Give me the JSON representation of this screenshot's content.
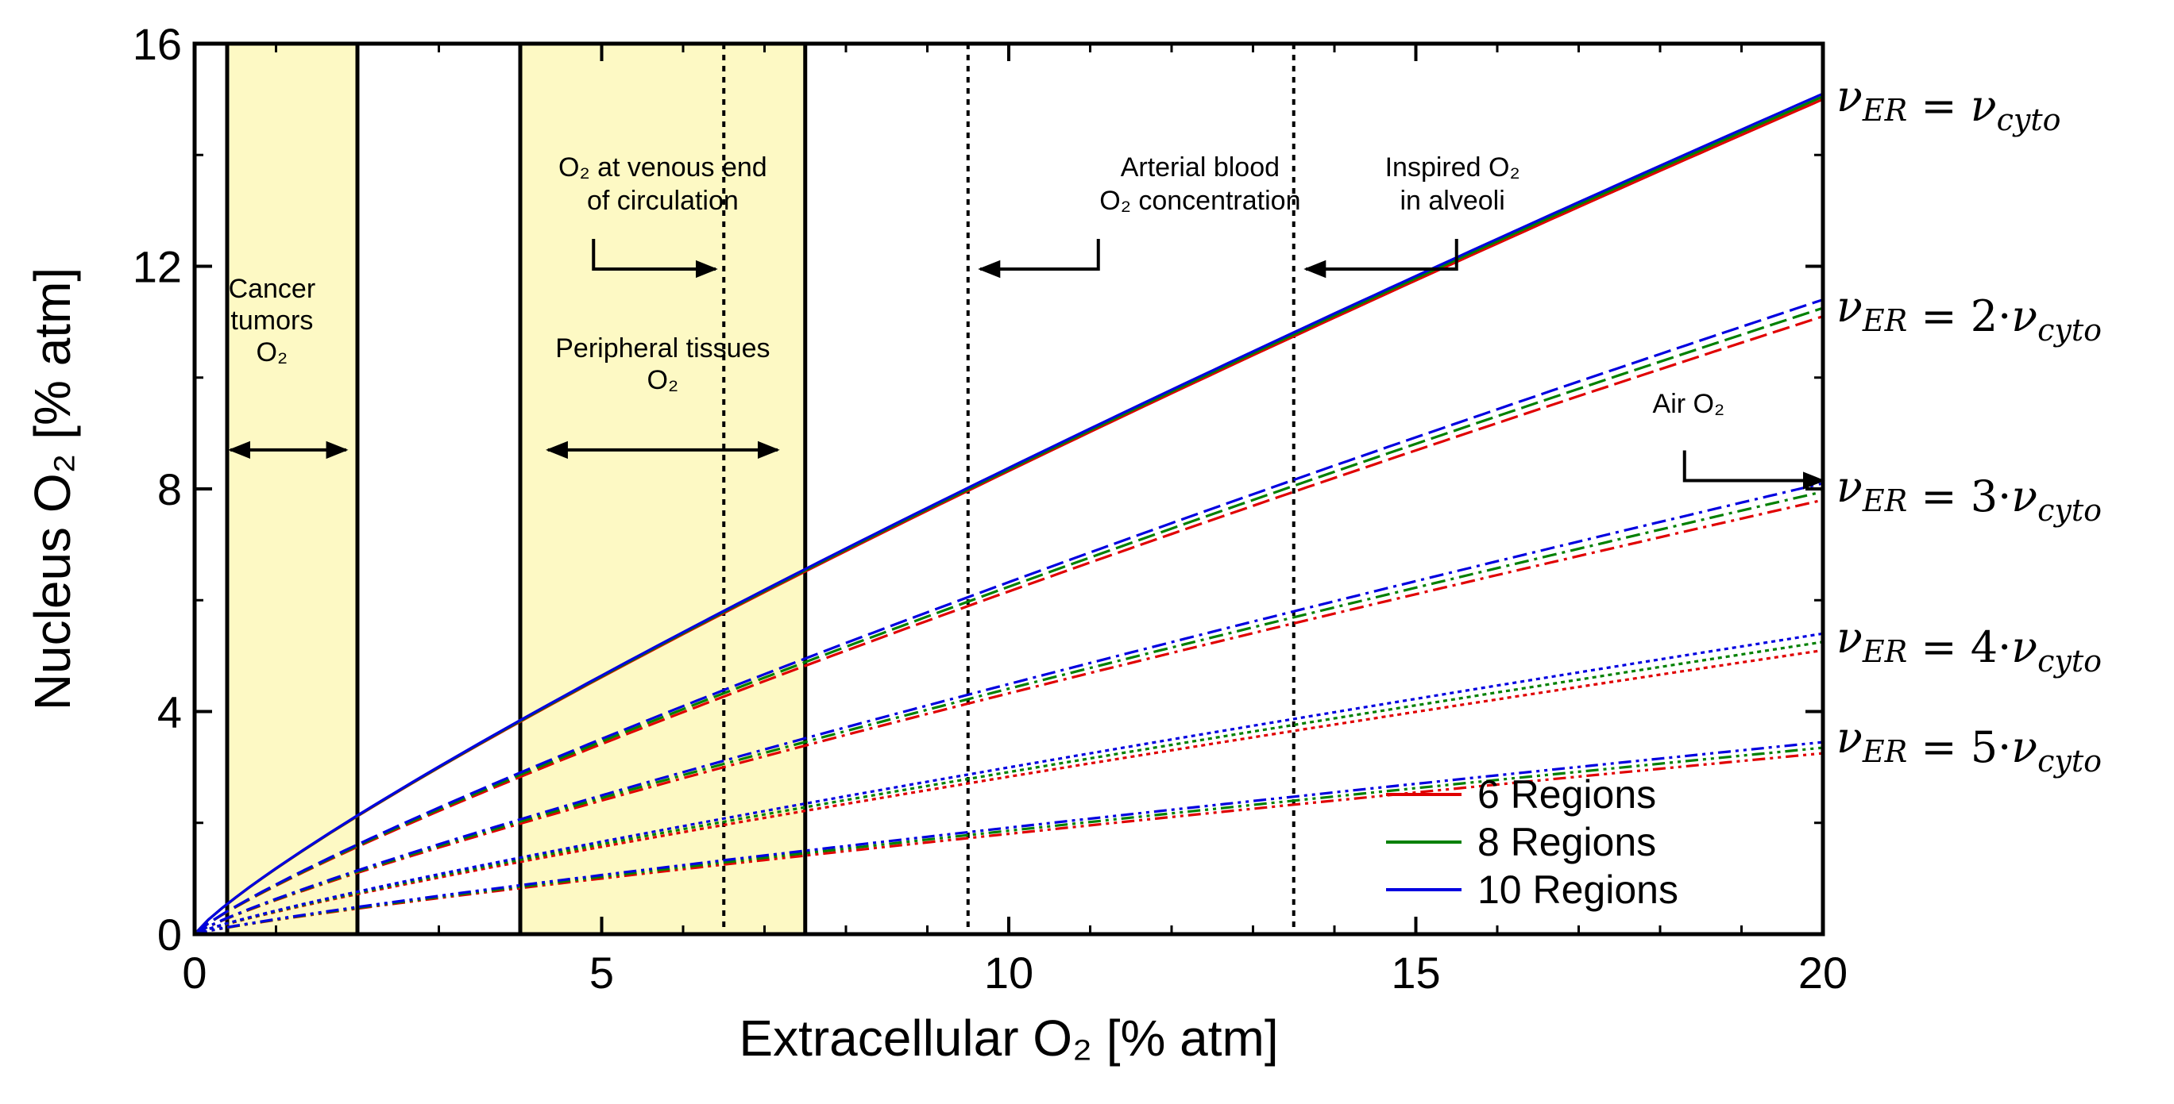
{
  "chart_data": {
    "type": "line",
    "xlabel": "Extracellular O₂ [% atm]",
    "ylabel": "Nucleus O₂ [% atm]",
    "xlim": [
      0,
      20
    ],
    "ylim": [
      0,
      16
    ],
    "xticks": [
      "0",
      "5",
      "10",
      "15",
      "20"
    ],
    "yticks": [
      "0",
      "4",
      "8",
      "12",
      "16"
    ],
    "shaded_bands": [
      {
        "name": "Cancer tumors O₂",
        "x_range": [
          0.4,
          2
        ],
        "color": "#fdf9c4"
      },
      {
        "name": "Peripheral tissues O₂",
        "x_range": [
          4,
          7.5
        ],
        "color": "#fdf9c4"
      }
    ],
    "vertical_lines": [
      {
        "x": 0.4,
        "style": "solid"
      },
      {
        "x": 2,
        "style": "solid"
      },
      {
        "x": 4,
        "style": "solid"
      },
      {
        "x": 7.5,
        "style": "solid"
      },
      {
        "x": 6.5,
        "style": "dotted"
      },
      {
        "x": 9.5,
        "style": "dotted"
      },
      {
        "x": 13.5,
        "style": "dotted"
      }
    ],
    "legend": [
      {
        "label": "6 Regions",
        "color": "#e00000"
      },
      {
        "label": "8 Regions",
        "color": "#008000"
      },
      {
        "label": "10 Regions",
        "color": "#0000e0"
      }
    ],
    "legend_position": "bottom-right",
    "curve_groups": [
      {
        "ratio": "ν_ER = ν_cyto",
        "dash": "solid",
        "end_values": [
          15.0,
          15.05,
          15.1
        ]
      },
      {
        "ratio": "ν_ER = 2·ν_cyto",
        "dash": "dashed",
        "end_values": [
          11.1,
          11.25,
          11.4
        ]
      },
      {
        "ratio": "ν_ER = 3·ν_cyto",
        "dash": "dash-dot",
        "end_values": [
          7.8,
          7.95,
          8.1
        ]
      },
      {
        "ratio": "ν_ER = 4·ν_cyto",
        "dash": "dotted",
        "end_values": [
          5.1,
          5.25,
          5.4
        ]
      },
      {
        "ratio": "ν_ER = 5·ν_cyto",
        "dash": "dash-dot-dot",
        "end_values": [
          3.25,
          3.35,
          3.45
        ]
      }
    ],
    "shape_exponent": 0.85,
    "annotations": [
      {
        "id": "cancer",
        "lines": [
          "Cancer",
          "tumors",
          "O₂"
        ],
        "arrow": "double",
        "arrow_x": [
          0.4,
          1.9
        ],
        "arrow_y": 8.7
      },
      {
        "id": "peripheral",
        "lines": [
          "Peripheral tissues",
          "O₂"
        ],
        "arrow": "double",
        "arrow_x": [
          4.3,
          7.2
        ],
        "arrow_y": 8.7
      },
      {
        "id": "venous",
        "lines": [
          "O₂ at venous end",
          "of circulation"
        ],
        "arrow": "right",
        "arrow_from_x": 4.9,
        "arrow_to_x": 6.4,
        "arrow_y": 11.95
      },
      {
        "id": "arterial",
        "lines": [
          "Arterial blood",
          "O₂ concentration"
        ],
        "arrow": "left",
        "arrow_from_x": 11.1,
        "arrow_to_x": 9.65,
        "arrow_y": 11.95
      },
      {
        "id": "inspired",
        "lines": [
          "Inspired O₂",
          "in alveoli"
        ],
        "arrow": "left",
        "arrow_from_x": 15.5,
        "arrow_to_x": 13.65,
        "arrow_y": 11.95
      },
      {
        "id": "air",
        "lines": [
          "Air O₂"
        ],
        "arrow": "right",
        "arrow_from_x": 18.3,
        "arrow_to_x": 20.0,
        "arrow_y": 8.15
      }
    ]
  }
}
